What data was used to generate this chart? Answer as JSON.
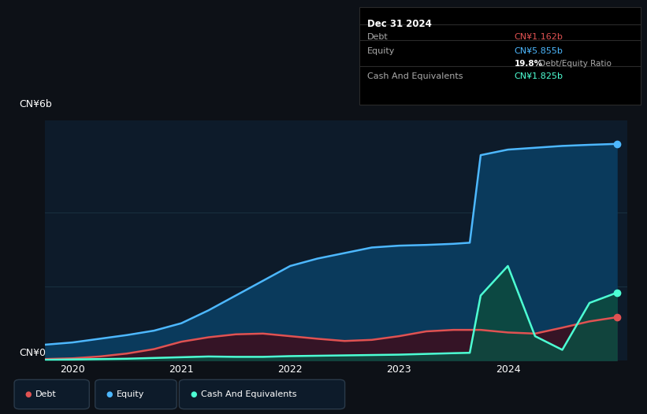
{
  "background_color": "#0d1117",
  "plot_bg_color": "#0d1b2a",
  "tooltip": {
    "date": "Dec 31 2024",
    "debt_label": "Debt",
    "debt_value": "CN¥1.162b",
    "equity_label": "Equity",
    "equity_value": "CN¥5.855b",
    "ratio_bold": "19.8%",
    "ratio_rest": " Debt/Equity Ratio",
    "cash_label": "Cash And Equivalents",
    "cash_value": "CN¥1.825b"
  },
  "y_label_top": "CN¥6b",
  "y_label_bottom": "CN¥0",
  "x_ticks": [
    "2020",
    "2021",
    "2022",
    "2023",
    "2024"
  ],
  "x_tick_positions": [
    2020,
    2021,
    2022,
    2023,
    2024
  ],
  "debt_color": "#e05252",
  "equity_color": "#4db8ff",
  "cash_color": "#4dffd4",
  "equity_fill_color": "#0a3a5c",
  "debt_fill_color": "#3a1020",
  "cash_fill_color": "#0d4a40",
  "grid_color": "#1e3a4a",
  "legend_bg": "#0d1b2a",
  "legend_border": "#2a3a4a",
  "tooltip_bg": "#000000",
  "tooltip_border": "#2a2a2a",
  "time_points": [
    2019.75,
    2020.0,
    2020.25,
    2020.5,
    2020.75,
    2021.0,
    2021.25,
    2021.5,
    2021.75,
    2022.0,
    2022.25,
    2022.5,
    2022.75,
    2023.0,
    2023.25,
    2023.5,
    2023.65,
    2023.75,
    2024.0,
    2024.25,
    2024.5,
    2024.75,
    2025.0
  ],
  "equity_values": [
    0.42,
    0.48,
    0.58,
    0.68,
    0.8,
    1.0,
    1.35,
    1.75,
    2.15,
    2.55,
    2.75,
    2.9,
    3.05,
    3.1,
    3.12,
    3.15,
    3.18,
    5.55,
    5.7,
    5.75,
    5.8,
    5.83,
    5.855
  ],
  "debt_values": [
    0.03,
    0.05,
    0.1,
    0.18,
    0.3,
    0.5,
    0.62,
    0.7,
    0.72,
    0.65,
    0.58,
    0.52,
    0.55,
    0.65,
    0.78,
    0.82,
    0.82,
    0.82,
    0.75,
    0.72,
    0.88,
    1.05,
    1.162
  ],
  "cash_values": [
    0.01,
    0.02,
    0.03,
    0.04,
    0.06,
    0.08,
    0.1,
    0.09,
    0.09,
    0.11,
    0.12,
    0.13,
    0.14,
    0.15,
    0.17,
    0.19,
    0.2,
    1.75,
    2.55,
    0.65,
    0.28,
    1.55,
    1.825
  ],
  "ylim": [
    0,
    6.5
  ],
  "xlim": [
    2019.75,
    2025.1
  ],
  "figsize": [
    8.21,
    5.26
  ],
  "dpi": 100
}
